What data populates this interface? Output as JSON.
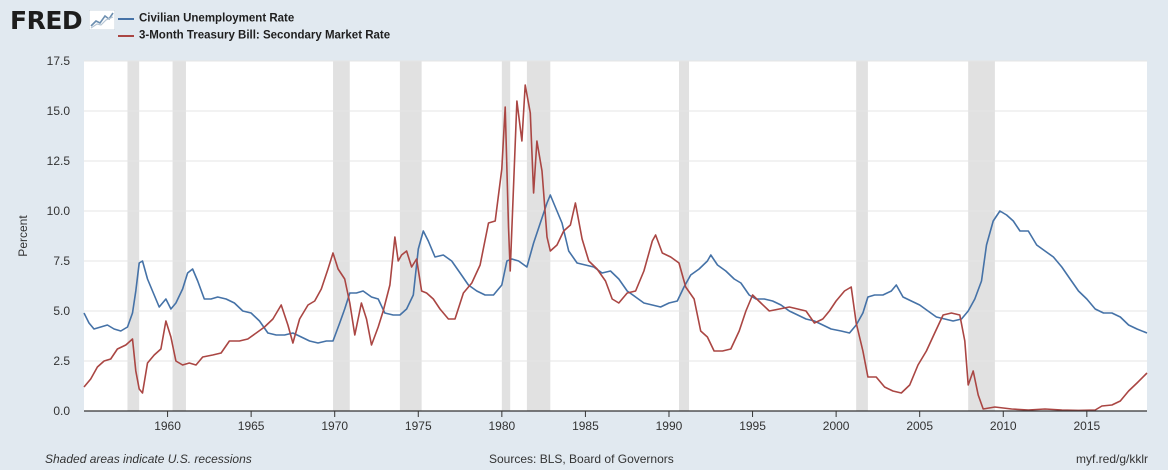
{
  "header": {
    "logo_text": "FRED",
    "logo_icon": "chart-line-icon"
  },
  "colors": {
    "unrate": "#4572a7",
    "tb3ms": "#aa4643",
    "recession": "#e1e1e1",
    "background": "#e1e9f0",
    "plot_bg": "#ffffff",
    "grid": "#e5e5e5"
  },
  "footer": {
    "note": "Shaded areas indicate U.S. recessions",
    "sources": "Sources: BLS, Board of Governors",
    "short_url": "myf.red/g/kklr"
  },
  "chart_data": {
    "type": "line",
    "title": "",
    "xlabel": "",
    "ylabel": "Percent",
    "xlim": [
      1955.0,
      2018.6
    ],
    "ylim": [
      0,
      17.5
    ],
    "yticks": [
      "0.0",
      "2.5",
      "5.0",
      "7.5",
      "10.0",
      "12.5",
      "15.0",
      "17.5"
    ],
    "xticks": [
      "1960",
      "1965",
      "1970",
      "1975",
      "1980",
      "1985",
      "1990",
      "1995",
      "2000",
      "2005",
      "2010",
      "2015"
    ],
    "grid": "horizontal",
    "legend_position": "top-left",
    "recessions": [
      [
        1957.6,
        1958.3
      ],
      [
        1960.3,
        1961.1
      ],
      [
        1969.9,
        1970.9
      ],
      [
        1973.9,
        1975.2
      ],
      [
        1980.0,
        1980.5
      ],
      [
        1981.5,
        1982.9
      ],
      [
        1990.6,
        1991.2
      ],
      [
        2001.2,
        2001.9
      ],
      [
        2007.9,
        2009.5
      ]
    ],
    "series": [
      {
        "name": "Civilian Unemployment Rate",
        "points": [
          [
            1955.0,
            4.9
          ],
          [
            1955.3,
            4.4
          ],
          [
            1955.6,
            4.1
          ],
          [
            1956.0,
            4.2
          ],
          [
            1956.4,
            4.3
          ],
          [
            1956.8,
            4.1
          ],
          [
            1957.2,
            4.0
          ],
          [
            1957.6,
            4.2
          ],
          [
            1957.9,
            4.9
          ],
          [
            1958.1,
            6.0
          ],
          [
            1958.3,
            7.4
          ],
          [
            1958.5,
            7.5
          ],
          [
            1958.8,
            6.6
          ],
          [
            1959.1,
            6.0
          ],
          [
            1959.5,
            5.2
          ],
          [
            1959.9,
            5.6
          ],
          [
            1960.2,
            5.1
          ],
          [
            1960.5,
            5.4
          ],
          [
            1960.9,
            6.1
          ],
          [
            1961.2,
            6.9
          ],
          [
            1961.5,
            7.1
          ],
          [
            1961.8,
            6.5
          ],
          [
            1962.2,
            5.6
          ],
          [
            1962.6,
            5.6
          ],
          [
            1963.0,
            5.7
          ],
          [
            1963.5,
            5.6
          ],
          [
            1964.0,
            5.4
          ],
          [
            1964.5,
            5.0
          ],
          [
            1965.0,
            4.9
          ],
          [
            1965.5,
            4.5
          ],
          [
            1966.0,
            3.9
          ],
          [
            1966.5,
            3.8
          ],
          [
            1967.0,
            3.8
          ],
          [
            1967.5,
            3.9
          ],
          [
            1968.0,
            3.7
          ],
          [
            1968.5,
            3.5
          ],
          [
            1969.0,
            3.4
          ],
          [
            1969.5,
            3.5
          ],
          [
            1969.9,
            3.5
          ],
          [
            1970.3,
            4.4
          ],
          [
            1970.6,
            5.1
          ],
          [
            1970.9,
            5.9
          ],
          [
            1971.3,
            5.9
          ],
          [
            1971.7,
            6.0
          ],
          [
            1972.2,
            5.7
          ],
          [
            1972.6,
            5.6
          ],
          [
            1973.0,
            4.9
          ],
          [
            1973.5,
            4.8
          ],
          [
            1973.9,
            4.8
          ],
          [
            1974.3,
            5.1
          ],
          [
            1974.7,
            5.8
          ],
          [
            1975.0,
            8.1
          ],
          [
            1975.3,
            9.0
          ],
          [
            1975.6,
            8.5
          ],
          [
            1976.0,
            7.7
          ],
          [
            1976.5,
            7.8
          ],
          [
            1977.0,
            7.5
          ],
          [
            1977.5,
            6.9
          ],
          [
            1978.0,
            6.3
          ],
          [
            1978.5,
            6.0
          ],
          [
            1979.0,
            5.8
          ],
          [
            1979.5,
            5.8
          ],
          [
            1980.0,
            6.3
          ],
          [
            1980.3,
            7.5
          ],
          [
            1980.6,
            7.6
          ],
          [
            1981.0,
            7.5
          ],
          [
            1981.5,
            7.2
          ],
          [
            1981.9,
            8.4
          ],
          [
            1982.3,
            9.4
          ],
          [
            1982.7,
            10.4
          ],
          [
            1982.9,
            10.8
          ],
          [
            1983.2,
            10.2
          ],
          [
            1983.6,
            9.4
          ],
          [
            1984.0,
            8.0
          ],
          [
            1984.5,
            7.4
          ],
          [
            1985.0,
            7.3
          ],
          [
            1985.5,
            7.2
          ],
          [
            1986.0,
            6.9
          ],
          [
            1986.5,
            7.0
          ],
          [
            1987.0,
            6.6
          ],
          [
            1987.5,
            6.0
          ],
          [
            1988.0,
            5.7
          ],
          [
            1988.5,
            5.4
          ],
          [
            1989.0,
            5.3
          ],
          [
            1989.5,
            5.2
          ],
          [
            1990.0,
            5.4
          ],
          [
            1990.5,
            5.5
          ],
          [
            1990.9,
            6.2
          ],
          [
            1991.3,
            6.8
          ],
          [
            1991.8,
            7.1
          ],
          [
            1992.3,
            7.5
          ],
          [
            1992.5,
            7.8
          ],
          [
            1992.9,
            7.3
          ],
          [
            1993.4,
            7.0
          ],
          [
            1993.9,
            6.6
          ],
          [
            1994.3,
            6.4
          ],
          [
            1994.8,
            5.8
          ],
          [
            1995.2,
            5.6
          ],
          [
            1995.7,
            5.6
          ],
          [
            1996.2,
            5.5
          ],
          [
            1996.7,
            5.3
          ],
          [
            1997.2,
            5.0
          ],
          [
            1997.7,
            4.8
          ],
          [
            1998.2,
            4.6
          ],
          [
            1998.7,
            4.5
          ],
          [
            1999.2,
            4.3
          ],
          [
            1999.7,
            4.1
          ],
          [
            2000.3,
            4.0
          ],
          [
            2000.8,
            3.9
          ],
          [
            2001.2,
            4.3
          ],
          [
            2001.6,
            4.9
          ],
          [
            2001.9,
            5.7
          ],
          [
            2002.3,
            5.8
          ],
          [
            2002.8,
            5.8
          ],
          [
            2003.3,
            6.0
          ],
          [
            2003.6,
            6.3
          ],
          [
            2004.0,
            5.7
          ],
          [
            2004.5,
            5.5
          ],
          [
            2005.0,
            5.3
          ],
          [
            2005.5,
            5.0
          ],
          [
            2006.0,
            4.7
          ],
          [
            2006.5,
            4.6
          ],
          [
            2007.0,
            4.5
          ],
          [
            2007.5,
            4.6
          ],
          [
            2007.9,
            5.0
          ],
          [
            2008.3,
            5.6
          ],
          [
            2008.7,
            6.5
          ],
          [
            2009.0,
            8.3
          ],
          [
            2009.4,
            9.5
          ],
          [
            2009.8,
            10.0
          ],
          [
            2010.2,
            9.8
          ],
          [
            2010.6,
            9.5
          ],
          [
            2011.0,
            9.0
          ],
          [
            2011.5,
            9.0
          ],
          [
            2012.0,
            8.3
          ],
          [
            2012.5,
            8.0
          ],
          [
            2013.0,
            7.7
          ],
          [
            2013.5,
            7.2
          ],
          [
            2014.0,
            6.6
          ],
          [
            2014.5,
            6.0
          ],
          [
            2015.0,
            5.6
          ],
          [
            2015.5,
            5.1
          ],
          [
            2016.0,
            4.9
          ],
          [
            2016.5,
            4.9
          ],
          [
            2017.0,
            4.7
          ],
          [
            2017.5,
            4.3
          ],
          [
            2018.0,
            4.1
          ],
          [
            2018.6,
            3.9
          ]
        ]
      },
      {
        "name": "3-Month Treasury Bill: Secondary Market Rate",
        "points": [
          [
            1955.0,
            1.2
          ],
          [
            1955.4,
            1.6
          ],
          [
            1955.8,
            2.2
          ],
          [
            1956.2,
            2.5
          ],
          [
            1956.6,
            2.6
          ],
          [
            1957.0,
            3.1
          ],
          [
            1957.5,
            3.3
          ],
          [
            1957.9,
            3.6
          ],
          [
            1958.1,
            2.0
          ],
          [
            1958.3,
            1.1
          ],
          [
            1958.5,
            0.9
          ],
          [
            1958.8,
            2.4
          ],
          [
            1959.2,
            2.8
          ],
          [
            1959.6,
            3.1
          ],
          [
            1959.9,
            4.5
          ],
          [
            1960.2,
            3.7
          ],
          [
            1960.5,
            2.5
          ],
          [
            1960.9,
            2.3
          ],
          [
            1961.3,
            2.4
          ],
          [
            1961.7,
            2.3
          ],
          [
            1962.1,
            2.7
          ],
          [
            1962.7,
            2.8
          ],
          [
            1963.2,
            2.9
          ],
          [
            1963.7,
            3.5
          ],
          [
            1964.3,
            3.5
          ],
          [
            1964.8,
            3.6
          ],
          [
            1965.3,
            3.9
          ],
          [
            1965.8,
            4.2
          ],
          [
            1966.3,
            4.6
          ],
          [
            1966.8,
            5.3
          ],
          [
            1967.2,
            4.3
          ],
          [
            1967.5,
            3.4
          ],
          [
            1967.9,
            4.6
          ],
          [
            1968.4,
            5.3
          ],
          [
            1968.8,
            5.5
          ],
          [
            1969.2,
            6.1
          ],
          [
            1969.6,
            7.1
          ],
          [
            1969.9,
            7.9
          ],
          [
            1970.2,
            7.1
          ],
          [
            1970.6,
            6.6
          ],
          [
            1970.9,
            5.4
          ],
          [
            1971.2,
            3.8
          ],
          [
            1971.6,
            5.4
          ],
          [
            1971.9,
            4.6
          ],
          [
            1972.2,
            3.3
          ],
          [
            1972.6,
            4.2
          ],
          [
            1972.9,
            5.0
          ],
          [
            1973.3,
            6.3
          ],
          [
            1973.6,
            8.7
          ],
          [
            1973.8,
            7.5
          ],
          [
            1974.0,
            7.8
          ],
          [
            1974.3,
            8.0
          ],
          [
            1974.6,
            7.2
          ],
          [
            1974.9,
            7.6
          ],
          [
            1975.2,
            6.0
          ],
          [
            1975.5,
            5.9
          ],
          [
            1975.9,
            5.6
          ],
          [
            1976.3,
            5.1
          ],
          [
            1976.8,
            4.6
          ],
          [
            1977.2,
            4.6
          ],
          [
            1977.7,
            5.9
          ],
          [
            1978.2,
            6.4
          ],
          [
            1978.7,
            7.3
          ],
          [
            1979.2,
            9.4
          ],
          [
            1979.6,
            9.5
          ],
          [
            1980.0,
            12.1
          ],
          [
            1980.2,
            15.2
          ],
          [
            1980.4,
            9.2
          ],
          [
            1980.5,
            7.0
          ],
          [
            1980.9,
            15.5
          ],
          [
            1981.2,
            13.5
          ],
          [
            1981.4,
            16.3
          ],
          [
            1981.7,
            14.9
          ],
          [
            1981.9,
            10.9
          ],
          [
            1982.1,
            13.5
          ],
          [
            1982.4,
            12.0
          ],
          [
            1982.7,
            8.7
          ],
          [
            1982.9,
            8.0
          ],
          [
            1983.3,
            8.3
          ],
          [
            1983.7,
            9.0
          ],
          [
            1984.1,
            9.3
          ],
          [
            1984.4,
            10.4
          ],
          [
            1984.8,
            8.6
          ],
          [
            1985.2,
            7.5
          ],
          [
            1985.7,
            7.1
          ],
          [
            1986.2,
            6.5
          ],
          [
            1986.6,
            5.6
          ],
          [
            1987.0,
            5.4
          ],
          [
            1987.5,
            5.9
          ],
          [
            1988.0,
            6.0
          ],
          [
            1988.5,
            7.0
          ],
          [
            1989.0,
            8.5
          ],
          [
            1989.2,
            8.8
          ],
          [
            1989.6,
            7.9
          ],
          [
            1990.1,
            7.7
          ],
          [
            1990.6,
            7.4
          ],
          [
            1991.0,
            6.2
          ],
          [
            1991.5,
            5.6
          ],
          [
            1991.9,
            4.0
          ],
          [
            1992.3,
            3.7
          ],
          [
            1992.7,
            3.0
          ],
          [
            1993.2,
            3.0
          ],
          [
            1993.7,
            3.1
          ],
          [
            1994.2,
            4.0
          ],
          [
            1994.6,
            5.0
          ],
          [
            1995.0,
            5.8
          ],
          [
            1995.5,
            5.4
          ],
          [
            1996.0,
            5.0
          ],
          [
            1996.6,
            5.1
          ],
          [
            1997.2,
            5.2
          ],
          [
            1997.7,
            5.1
          ],
          [
            1998.2,
            5.0
          ],
          [
            1998.7,
            4.4
          ],
          [
            1999.2,
            4.6
          ],
          [
            1999.6,
            5.0
          ],
          [
            2000.0,
            5.5
          ],
          [
            2000.5,
            6.0
          ],
          [
            2000.9,
            6.2
          ],
          [
            2001.2,
            4.4
          ],
          [
            2001.6,
            3.0
          ],
          [
            2001.9,
            1.7
          ],
          [
            2002.4,
            1.7
          ],
          [
            2002.9,
            1.2
          ],
          [
            2003.4,
            1.0
          ],
          [
            2003.9,
            0.9
          ],
          [
            2004.4,
            1.3
          ],
          [
            2004.9,
            2.3
          ],
          [
            2005.4,
            3.0
          ],
          [
            2005.9,
            3.9
          ],
          [
            2006.4,
            4.8
          ],
          [
            2006.9,
            4.9
          ],
          [
            2007.4,
            4.8
          ],
          [
            2007.7,
            3.5
          ],
          [
            2007.9,
            1.3
          ],
          [
            2008.2,
            2.0
          ],
          [
            2008.5,
            0.8
          ],
          [
            2008.8,
            0.1
          ],
          [
            2009.5,
            0.2
          ],
          [
            2010.5,
            0.1
          ],
          [
            2011.5,
            0.05
          ],
          [
            2012.5,
            0.1
          ],
          [
            2013.5,
            0.05
          ],
          [
            2014.5,
            0.03
          ],
          [
            2015.5,
            0.05
          ],
          [
            2015.9,
            0.25
          ],
          [
            2016.5,
            0.3
          ],
          [
            2017.0,
            0.5
          ],
          [
            2017.5,
            1.0
          ],
          [
            2018.0,
            1.4
          ],
          [
            2018.6,
            1.9
          ]
        ]
      }
    ]
  }
}
